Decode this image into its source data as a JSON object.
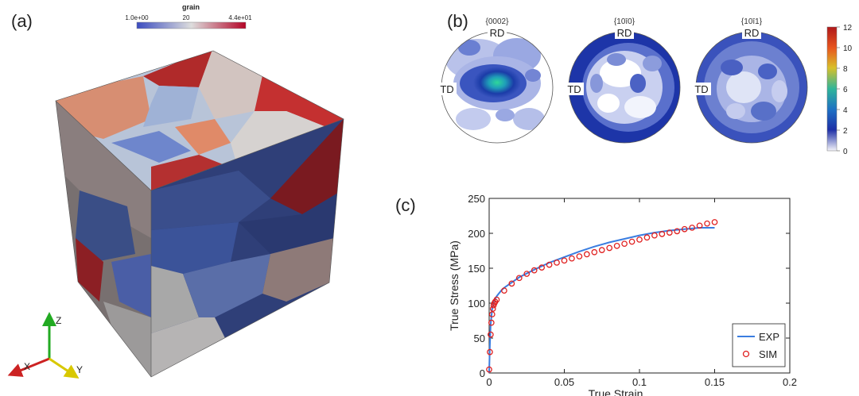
{
  "panels": {
    "a": "(a)",
    "b": "(b)",
    "c": "(c)"
  },
  "colorbar_a": {
    "title": "grain",
    "min_label": "1.0e+00",
    "mid_label": "20",
    "max_label": "4.4e+01"
  },
  "axes_triad": {
    "z": "Z",
    "x": "X",
    "y": "Y"
  },
  "pole_figures": [
    {
      "title": "{0002}",
      "rd": "RD",
      "td": "TD"
    },
    {
      "title": "{10ī0}",
      "rd": "RD",
      "td": "TD"
    },
    {
      "title": "{10ī1}",
      "rd": "RD",
      "td": "TD"
    }
  ],
  "colorbar_b": {
    "ticks": [
      "12",
      "10",
      "8",
      "6",
      "4",
      "2",
      "0"
    ]
  },
  "chart_data": {
    "type": "line",
    "xlabel": "True Strain",
    "ylabel": "True Stress (MPa)",
    "xlim": [
      0,
      0.2
    ],
    "ylim": [
      0,
      250
    ],
    "xticks": [
      "0",
      "0.05",
      "0.1",
      "0.15",
      "0.2"
    ],
    "yticks": [
      "0",
      "50",
      "100",
      "150",
      "200",
      "250"
    ],
    "legend_position": "bottom-right",
    "series": [
      {
        "name": "EXP",
        "style": "line",
        "color": "#3a7de0",
        "x": [
          0,
          0.0005,
          0.001,
          0.002,
          0.003,
          0.004,
          0.005,
          0.008,
          0.01,
          0.02,
          0.03,
          0.04,
          0.05,
          0.06,
          0.07,
          0.08,
          0.09,
          0.1,
          0.11,
          0.12,
          0.13,
          0.14,
          0.15
        ],
        "y": [
          0,
          40,
          70,
          92,
          102,
          106,
          110,
          118,
          122,
          137,
          148,
          158,
          166,
          174,
          181,
          187,
          192,
          197,
          201,
          204,
          206,
          208,
          208
        ]
      },
      {
        "name": "SIM",
        "style": "markers",
        "color": "#e02020",
        "x": [
          0,
          0.0005,
          0.001,
          0.0015,
          0.002,
          0.0025,
          0.003,
          0.0035,
          0.004,
          0.005,
          0.01,
          0.015,
          0.02,
          0.025,
          0.03,
          0.035,
          0.04,
          0.045,
          0.05,
          0.055,
          0.06,
          0.065,
          0.07,
          0.075,
          0.08,
          0.085,
          0.09,
          0.095,
          0.1,
          0.105,
          0.11,
          0.115,
          0.12,
          0.125,
          0.13,
          0.135,
          0.14,
          0.145,
          0.15
        ],
        "y": [
          5,
          30,
          55,
          72,
          84,
          92,
          97,
          100,
          102,
          105,
          118,
          128,
          136,
          142,
          147,
          151,
          155,
          158,
          161,
          164,
          167,
          170,
          173,
          176,
          179,
          182,
          185,
          188,
          191,
          194,
          197,
          199,
          201,
          203,
          206,
          208,
          211,
          214,
          216
        ]
      }
    ]
  }
}
